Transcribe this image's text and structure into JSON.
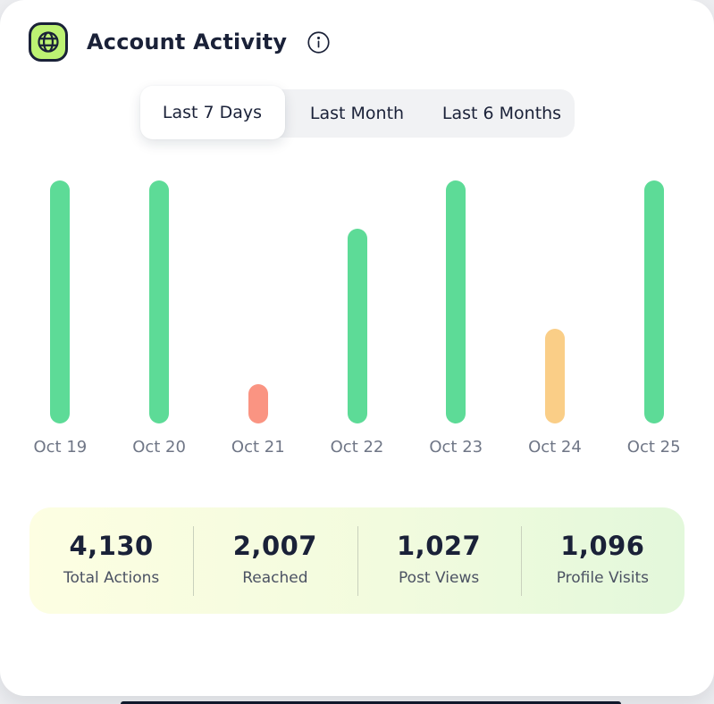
{
  "colors": {
    "navy": "#1A2138",
    "green": "#5DDB97",
    "salmon": "#FA9482",
    "orange": "#FACE87",
    "icon_green": "#BDF273",
    "label_gray": "#6F7686",
    "stats_bg_left": "#FDFEE2",
    "stats_bg_right": "#E3F8DB"
  },
  "header": {
    "title": "Account Activity",
    "icon": "globe-icon",
    "info_icon": "info-icon"
  },
  "tabs": {
    "items": [
      {
        "label": "Last 7 Days",
        "active": true
      },
      {
        "label": "Last Month",
        "active": false
      },
      {
        "label": "Last 6 Months",
        "active": false
      }
    ]
  },
  "chart_data": {
    "type": "bar",
    "title": "Account Activity — Last 7 Days",
    "categories": [
      "Oct 19",
      "Oct 20",
      "Oct 21",
      "Oct 22",
      "Oct 23",
      "Oct 24",
      "Oct 25"
    ],
    "values": [
      100,
      100,
      16,
      80,
      100,
      39,
      100
    ],
    "value_unit": "percent-of-max (no numeric axis shown)",
    "bar_colors": [
      "green",
      "green",
      "salmon",
      "green",
      "green",
      "orange",
      "green"
    ],
    "xlabel": "",
    "ylabel": "",
    "ylim": [
      0,
      100
    ],
    "grid": false,
    "legend": false
  },
  "stats": {
    "items": [
      {
        "value": "4,130",
        "label": "Total Actions"
      },
      {
        "value": "2,007",
        "label": "Reached"
      },
      {
        "value": "1,027",
        "label": "Post Views"
      },
      {
        "value": "1,096",
        "label": "Profile Visits"
      }
    ]
  }
}
